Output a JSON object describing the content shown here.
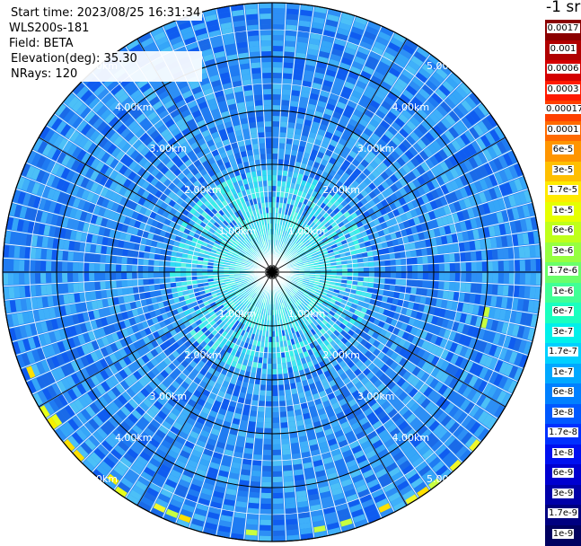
{
  "info": {
    "start_time": "Start time: 2023/08/25 16:31:34",
    "device": "WLS200s-181",
    "field": "Field: BETA",
    "elevation": "Elevation(deg): 35.30",
    "nrays": "NRays: 120"
  },
  "range_rings": [
    "1.00km",
    "2.00km",
    "3.00km",
    "4.00km",
    "5.00km"
  ],
  "colorbar": {
    "title": "-1 sr",
    "labels": [
      "0.0017",
      "0.001",
      "0.0006",
      "0.0003",
      "0.00017",
      "0.0001",
      "6e-5",
      "3e-5",
      "1.7e-5",
      "1e-5",
      "6e-6",
      "3e-6",
      "1.7e-6",
      "1e-6",
      "6e-7",
      "3e-7",
      "1.7e-7",
      "1e-7",
      "6e-8",
      "3e-8",
      "1.7e-8",
      "1e-8",
      "6e-9",
      "3e-9",
      "1.7e-9",
      "1e-9"
    ],
    "colors": [
      "#8b0000",
      "#b00000",
      "#d40000",
      "#ff1a00",
      "#ff4000",
      "#ff6a00",
      "#ff9500",
      "#ffbf00",
      "#ffea00",
      "#e6ff00",
      "#bfff1a",
      "#96ff40",
      "#6aff6a",
      "#40ff96",
      "#1affbf",
      "#00f0ea",
      "#00d0ff",
      "#00a8ff",
      "#0080ff",
      "#0058ff",
      "#0030ff",
      "#0010f0",
      "#0000d0",
      "#0000a8",
      "#000080",
      "#000060"
    ]
  }
}
